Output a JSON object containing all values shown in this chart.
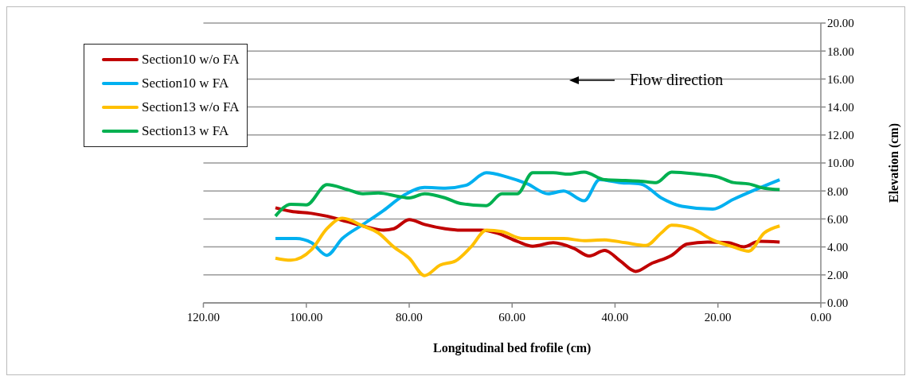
{
  "chart_data": {
    "type": "line",
    "xlabel": "Longitudinal bed  frofile (cm)",
    "ylabel": "Elevation (cm)",
    "xlim": [
      120,
      0
    ],
    "xticks": [
      {
        "value": 120,
        "label": "120.00"
      },
      {
        "value": 100,
        "label": "100.00"
      },
      {
        "value": 80,
        "label": "80.00"
      },
      {
        "value": 60,
        "label": "60.00"
      },
      {
        "value": 40,
        "label": "40.00"
      },
      {
        "value": 20,
        "label": "20.00"
      },
      {
        "value": 0,
        "label": "0.00"
      }
    ],
    "ylim": [
      0,
      20
    ],
    "yticks": [
      {
        "value": 0,
        "label": "0.00"
      },
      {
        "value": 2,
        "label": "2.00"
      },
      {
        "value": 4,
        "label": "4.00"
      },
      {
        "value": 6,
        "label": "6.00"
      },
      {
        "value": 8,
        "label": "8.00"
      },
      {
        "value": 10,
        "label": "10.00"
      },
      {
        "value": 12,
        "label": "12.00"
      },
      {
        "value": 14,
        "label": "14.00"
      },
      {
        "value": 16,
        "label": "16.00"
      },
      {
        "value": 18,
        "label": "18.00"
      },
      {
        "value": 20,
        "label": "20.00"
      }
    ],
    "grid": "y",
    "legend": "top left",
    "marker": "none",
    "line_style": "solid",
    "annotations": [
      "Flow direction"
    ],
    "series": [
      {
        "name": "Section10 w/o FA",
        "color": "#c00000",
        "x": [
          106,
          103,
          99,
          96,
          92,
          88,
          85,
          83,
          80,
          77,
          73,
          70,
          66,
          63,
          59,
          56,
          52,
          48,
          45,
          42,
          39,
          36,
          33,
          29,
          26,
          22,
          18,
          15,
          12,
          8
        ],
        "values": [
          6.8,
          6.55,
          6.4,
          6.2,
          5.8,
          5.4,
          5.2,
          5.3,
          5.95,
          5.6,
          5.3,
          5.2,
          5.2,
          5.0,
          4.4,
          4.05,
          4.3,
          3.9,
          3.35,
          3.75,
          3.0,
          2.25,
          2.8,
          3.4,
          4.2,
          4.35,
          4.3,
          4.0,
          4.4,
          4.35
        ]
      },
      {
        "name": "Section10 w FA",
        "color": "#00b0f0",
        "x": [
          106,
          102,
          99,
          96,
          93,
          89,
          85,
          81,
          77,
          73,
          69,
          65,
          61,
          57,
          53,
          50,
          46,
          43,
          39,
          35,
          31,
          27,
          21,
          17,
          12,
          8
        ],
        "values": [
          4.6,
          4.6,
          4.3,
          3.4,
          4.6,
          5.6,
          6.6,
          7.7,
          8.25,
          8.2,
          8.4,
          9.3,
          9.0,
          8.5,
          7.8,
          8.0,
          7.3,
          8.8,
          8.6,
          8.5,
          7.5,
          6.9,
          6.7,
          7.4,
          8.2,
          8.8
        ]
      },
      {
        "name": "Section13 w/o FA",
        "color": "#ffc000",
        "x": [
          106,
          103,
          99,
          96,
          93,
          89,
          86,
          83,
          80,
          77,
          74,
          71,
          68,
          65,
          62,
          58,
          54,
          50,
          46,
          42,
          38,
          34,
          31,
          29,
          25,
          21,
          17,
          14,
          11,
          8
        ],
        "values": [
          3.2,
          3.05,
          3.8,
          5.3,
          6.05,
          5.5,
          5.0,
          4.0,
          3.2,
          1.95,
          2.7,
          3.0,
          4.0,
          5.2,
          5.1,
          4.6,
          4.6,
          4.6,
          4.45,
          4.5,
          4.3,
          4.1,
          5.0,
          5.55,
          5.3,
          4.5,
          4.0,
          3.7,
          5.0,
          5.5
        ]
      },
      {
        "name": "Section13 w FA",
        "color": "#00b050",
        "x": [
          106,
          103,
          100,
          96,
          92,
          89,
          86,
          82,
          80,
          77,
          73,
          70,
          65,
          62,
          59,
          56,
          52,
          49,
          46,
          42,
          38,
          35,
          32,
          29,
          24,
          20,
          17,
          14,
          11,
          8
        ],
        "values": [
          6.2,
          7.05,
          7.0,
          8.45,
          8.1,
          7.8,
          7.85,
          7.6,
          7.5,
          7.8,
          7.5,
          7.1,
          6.95,
          7.8,
          7.8,
          9.3,
          9.3,
          9.2,
          9.35,
          8.8,
          8.75,
          8.7,
          8.6,
          9.35,
          9.2,
          9.0,
          8.6,
          8.5,
          8.2,
          8.1
        ]
      }
    ]
  }
}
